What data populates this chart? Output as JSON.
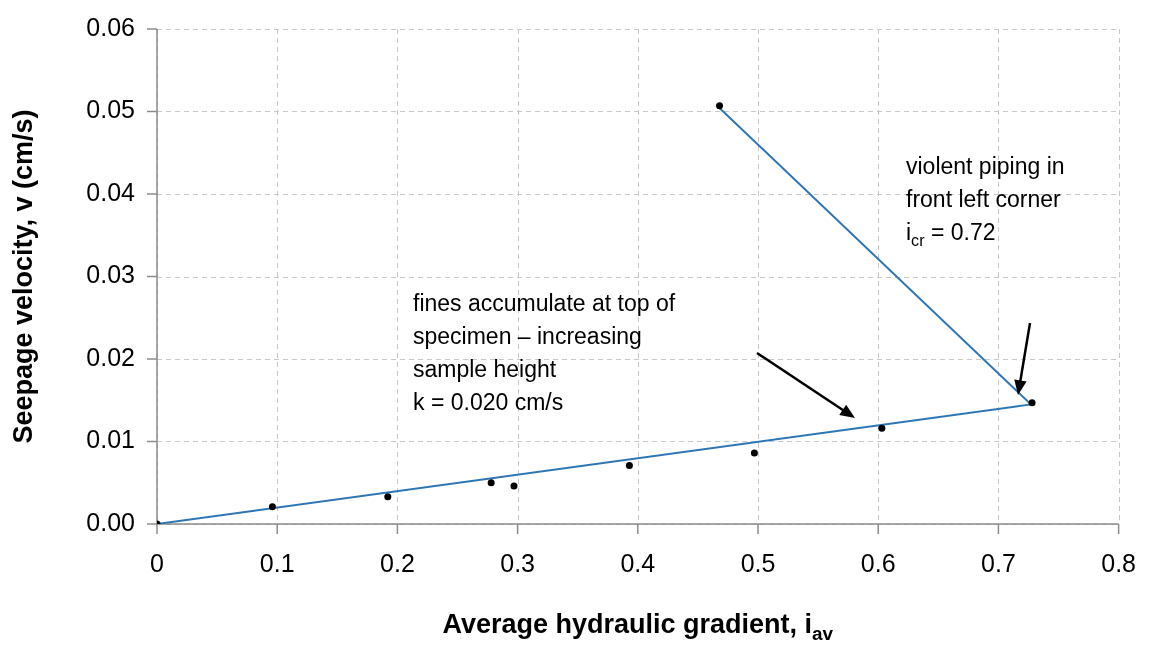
{
  "chart_data": {
    "type": "scatter",
    "xlabel": "Average hydraulic gradient, i$_{av}$",
    "ylabel": "Seepage velocity, v (cm/s)",
    "series": [
      {
        "color": "#000000",
        "marker": "circle",
        "x": [
          0,
          0.096,
          0.192,
          0.278,
          0.297,
          0.393,
          0.497,
          0.603,
          0.728,
          0.468
        ],
        "values": [
          0,
          0.0021,
          0.0033,
          0.005,
          0.0046,
          0.0071,
          0.0086,
          0.0116,
          0.0147,
          0.0507
        ]
      },
      {
        "type": "line",
        "color": "#2e75b6",
        "marker": "none",
        "line_style": "solid",
        "x": [
          0,
          0.727
        ],
        "values": [
          0,
          0.0145
        ]
      },
      {
        "type": "line",
        "color": "#2e75b6",
        "marker": "none",
        "line_style": "solid",
        "x": [
          0.466,
          0.727
        ],
        "values": [
          0.0507,
          0.0145
        ]
      }
    ],
    "xlim": [
      0,
      0.8
    ],
    "xticks": [
      0,
      0.1,
      0.2,
      0.3,
      0.4,
      0.5,
      0.6,
      0.7,
      0.8
    ],
    "ylim": [
      0,
      0.06
    ],
    "yticks": [
      {
        "value": 0,
        "label": "0.00"
      },
      0.01,
      0.02,
      0.03,
      0.04,
      0.05,
      0.06
    ],
    "grid": true,
    "legend": false,
    "annotations": [
      "fines accumulate at top of\nspecimen – increasing\nsample height\nk = 0.020 cm/s",
      "violent piping in\nfront left corner\ni$_{cr}$ = 0.72"
    ]
  }
}
